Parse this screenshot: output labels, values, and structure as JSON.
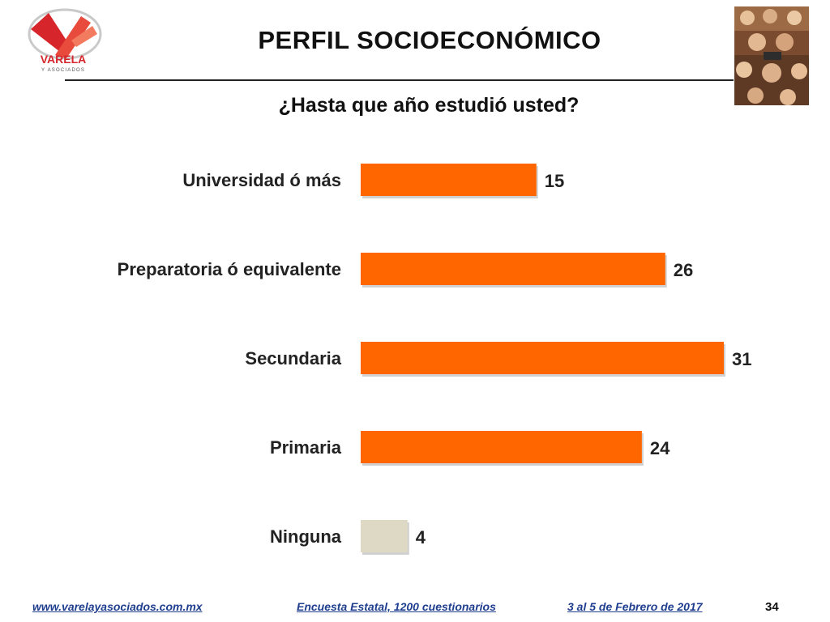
{
  "header": {
    "title": "PERFIL SOCIOECONÓMICO",
    "logo_text": "VARELA",
    "logo_subtext": "Y ASOCIADOS"
  },
  "question": "¿Hasta que año estudió usted?",
  "chart_data": {
    "type": "bar",
    "orientation": "horizontal",
    "title": "¿Hasta que año estudió usted?",
    "categories": [
      "Universidad ó más",
      "Preparatoria ó equivalente",
      "Secundaria",
      "Primaria",
      "Ninguna"
    ],
    "values": [
      15,
      26,
      31,
      24,
      4
    ],
    "xlim": [
      0,
      31
    ],
    "grid": false,
    "colors": [
      "#ff6600",
      "#ff6600",
      "#ff6600",
      "#ff6600",
      "#ddd9c4"
    ]
  },
  "footer": {
    "website": "www.varelayasociados.com.mx",
    "survey": "Encuesta Estatal, 1200 cuestionarios",
    "date": "3 al 5 de Febrero de 2017",
    "page": "34"
  },
  "colors": {
    "accent": "#ff6600",
    "muted_bar": "#ddd9c4",
    "footer_text": "#1f3e8f",
    "logo_red": "#d7262b"
  }
}
